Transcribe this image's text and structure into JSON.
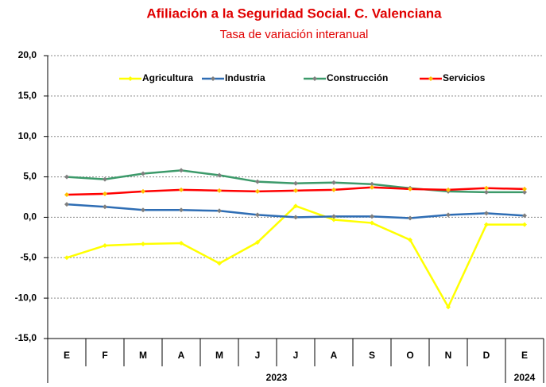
{
  "chart_data": {
    "type": "line",
    "title": "Afiliación a la Seguridad Social. C. Valenciana",
    "subtitle": "Tasa de variación interanual",
    "categories": [
      "E",
      "F",
      "M",
      "A",
      "M",
      "J",
      "J",
      "A",
      "S",
      "O",
      "N",
      "D",
      "E"
    ],
    "groups": [
      {
        "label": "2023",
        "count": 12
      },
      {
        "label": "2024",
        "count": 1
      }
    ],
    "series": [
      {
        "name": "Agricultura",
        "color": "#ffff00",
        "marker_color": "#ffff00",
        "values": [
          -5.0,
          -3.5,
          -3.3,
          -3.2,
          -5.7,
          -3.1,
          1.4,
          -0.3,
          -0.7,
          -2.8,
          -11.1,
          -0.9,
          -0.9
        ]
      },
      {
        "name": "Industria",
        "color": "#2e6db4",
        "marker_color": "#7f7f7f",
        "values": [
          1.6,
          1.3,
          0.9,
          0.9,
          0.8,
          0.3,
          0.0,
          0.1,
          0.1,
          -0.1,
          0.3,
          0.5,
          0.2
        ]
      },
      {
        "name": "Construcción",
        "color": "#3c9a6a",
        "marker_color": "#7f7f7f",
        "values": [
          5.0,
          4.7,
          5.4,
          5.8,
          5.2,
          4.4,
          4.2,
          4.3,
          4.1,
          3.6,
          3.2,
          3.1,
          3.1
        ]
      },
      {
        "name": "Servicios",
        "color": "#ff0000",
        "marker_color": "#ffc000",
        "values": [
          2.8,
          2.9,
          3.2,
          3.4,
          3.3,
          3.2,
          3.3,
          3.4,
          3.7,
          3.5,
          3.4,
          3.6,
          3.5
        ]
      }
    ],
    "ylim": [
      -15,
      20
    ],
    "yticks": [
      {
        "value": -15,
        "label": "-15,0"
      },
      {
        "value": -10,
        "label": "-10,0"
      },
      {
        "value": -5,
        "label": "-5,0"
      },
      {
        "value": 0,
        "label": "0,0"
      },
      {
        "value": 5,
        "label": "5,0"
      },
      {
        "value": 10,
        "label": "10,0"
      },
      {
        "value": 15,
        "label": "15,0"
      },
      {
        "value": 20,
        "label": "20,0"
      }
    ],
    "grid": true,
    "legend": "top"
  }
}
